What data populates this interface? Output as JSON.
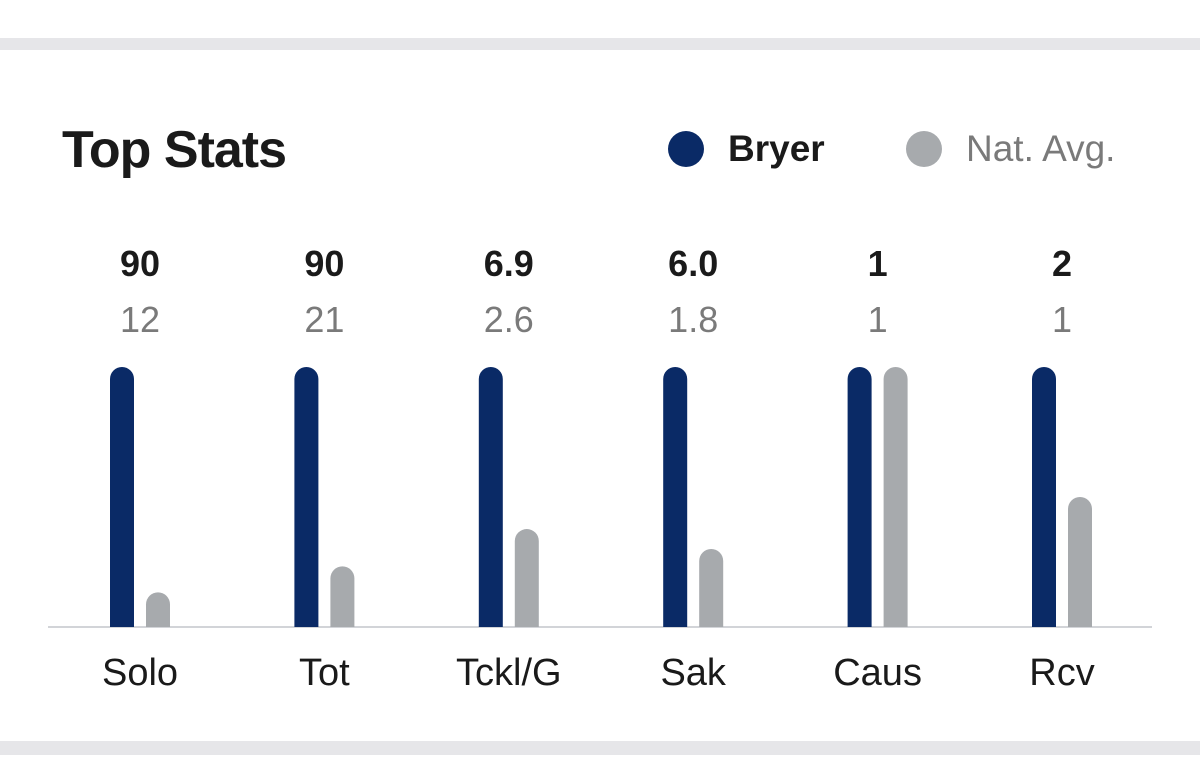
{
  "title": "Top Stats",
  "legend": {
    "player": "Bryer",
    "average": "Nat. Avg."
  },
  "colors": {
    "player": "#0a2a66",
    "average": "#a7aaad",
    "baseline": "#d2d4d8"
  },
  "chart_data": {
    "type": "bar",
    "title": "Top Stats",
    "categories": [
      "Solo",
      "Tot",
      "Tckl/G",
      "Sak",
      "Caus",
      "Rcv"
    ],
    "series": [
      {
        "name": "Bryer",
        "values": [
          90,
          90,
          6.9,
          6.0,
          1,
          2
        ],
        "labels": [
          "90",
          "90",
          "6.9",
          "6.0",
          "1",
          "2"
        ]
      },
      {
        "name": "Nat. Avg.",
        "values": [
          12,
          21,
          2.6,
          1.8,
          1,
          1
        ],
        "labels": [
          "12",
          "21",
          "2.6",
          "1.8",
          "1",
          "1"
        ]
      }
    ],
    "normalization": "each category scaled to its maximum value",
    "legend": "top-right",
    "grid": false
  }
}
